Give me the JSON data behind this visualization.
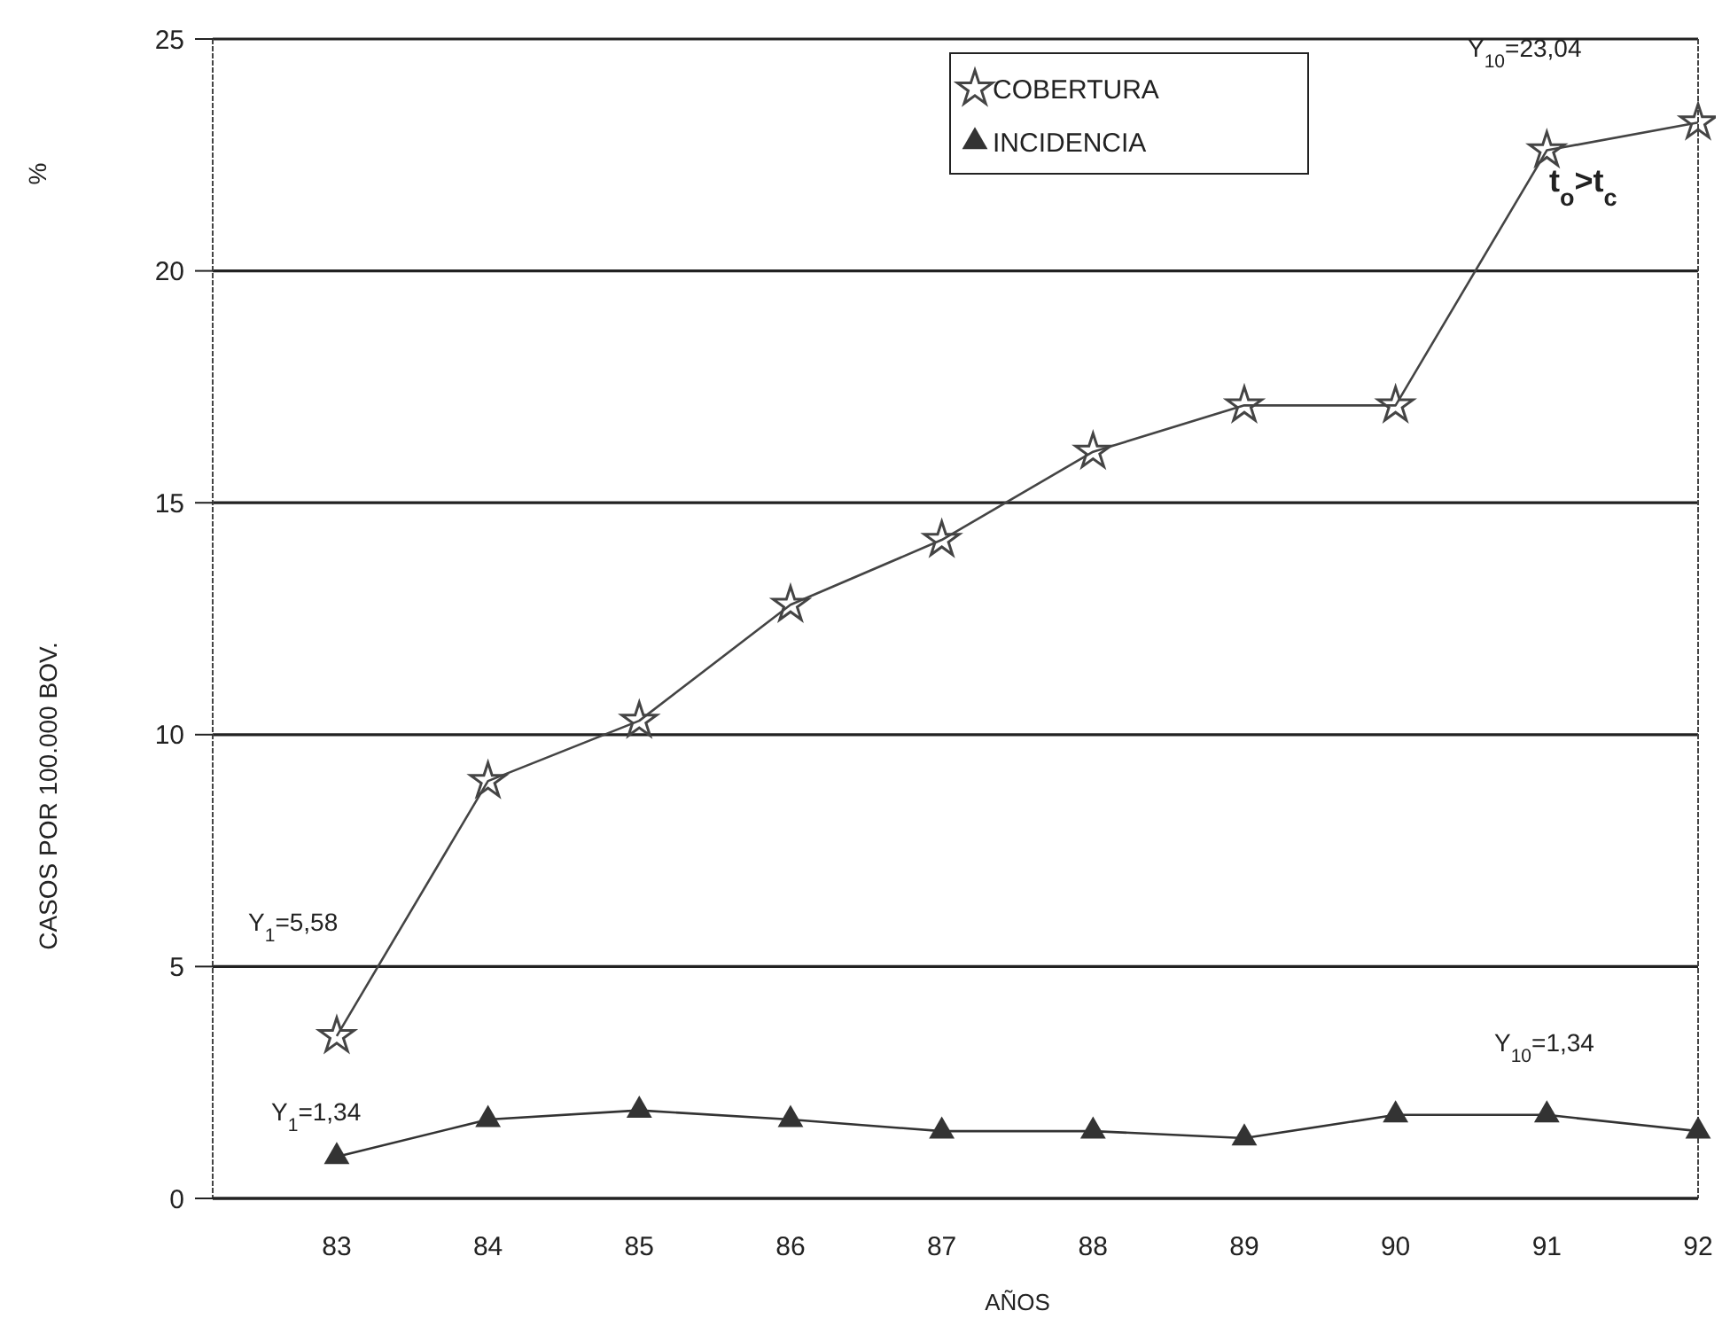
{
  "chart_data": {
    "type": "line",
    "xlabel": "AÑOS",
    "ylabel": "CASOS POR 100.000 BOV.",
    "categories": [
      "83",
      "84",
      "85",
      "86",
      "87",
      "88",
      "89",
      "90",
      "91",
      "92"
    ],
    "series": [
      {
        "name": "COBERTURA",
        "color": "#444444",
        "marker": "star",
        "values": [
          3.5,
          9.0,
          10.3,
          12.8,
          14.2,
          16.1,
          17.1,
          17.1,
          22.6,
          23.2
        ]
      },
      {
        "name": "INCIDENCIA",
        "color": "#333333",
        "marker": "triangle",
        "values": [
          0.9,
          1.7,
          1.9,
          1.7,
          1.45,
          1.45,
          1.3,
          1.8,
          1.8,
          1.45
        ]
      }
    ],
    "ylim": [
      0,
      25
    ],
    "yticks": [
      0,
      5,
      10,
      15,
      20,
      25
    ],
    "grid": "y",
    "legend": "top right",
    "line_style": "solid",
    "annotations": [
      "%",
      "Y$_{10}$=23,04",
      "t$_{o}$>t$_{c}$",
      "Y$_{1}$=5,58",
      "Y$_{10}$=1,34",
      "Y$_{1}$=1,34"
    ]
  }
}
